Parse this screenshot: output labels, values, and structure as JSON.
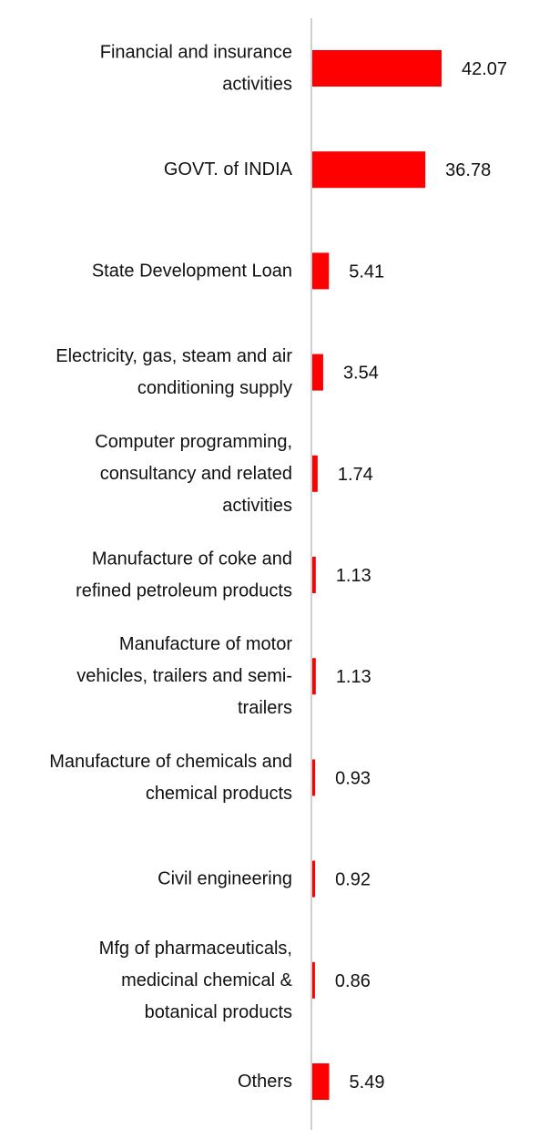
{
  "chart_data": {
    "type": "bar",
    "orientation": "horizontal",
    "categories": [
      [
        "Financial and insurance",
        "activities"
      ],
      [
        "GOVT. of INDIA"
      ],
      [
        "State Development Loan"
      ],
      [
        "Electricity, gas, steam and air",
        "conditioning supply"
      ],
      [
        "Computer programming,",
        "consultancy and related",
        "activities"
      ],
      [
        "Manufacture of coke and",
        "refined petroleum products"
      ],
      [
        "Manufacture of motor",
        "vehicles, trailers and semi-",
        "trailers"
      ],
      [
        "Manufacture of chemicals and",
        "chemical products"
      ],
      [
        "Civil engineering"
      ],
      [
        "Mfg of pharmaceuticals,",
        "medicinal chemical &",
        "botanical products"
      ],
      [
        "Others"
      ]
    ],
    "values": [
      42.07,
      36.78,
      5.41,
      3.54,
      1.74,
      1.13,
      1.13,
      0.93,
      0.92,
      0.86,
      5.49
    ],
    "value_labels": [
      "42.07",
      "36.78",
      "5.41",
      "3.54",
      "1.74",
      "1.13",
      "1.13",
      "0.93",
      "0.92",
      "0.86",
      "5.49"
    ],
    "bar_color": "#ff0000",
    "axis_color": "#d0d0d0",
    "grid": false,
    "legend": "none"
  }
}
